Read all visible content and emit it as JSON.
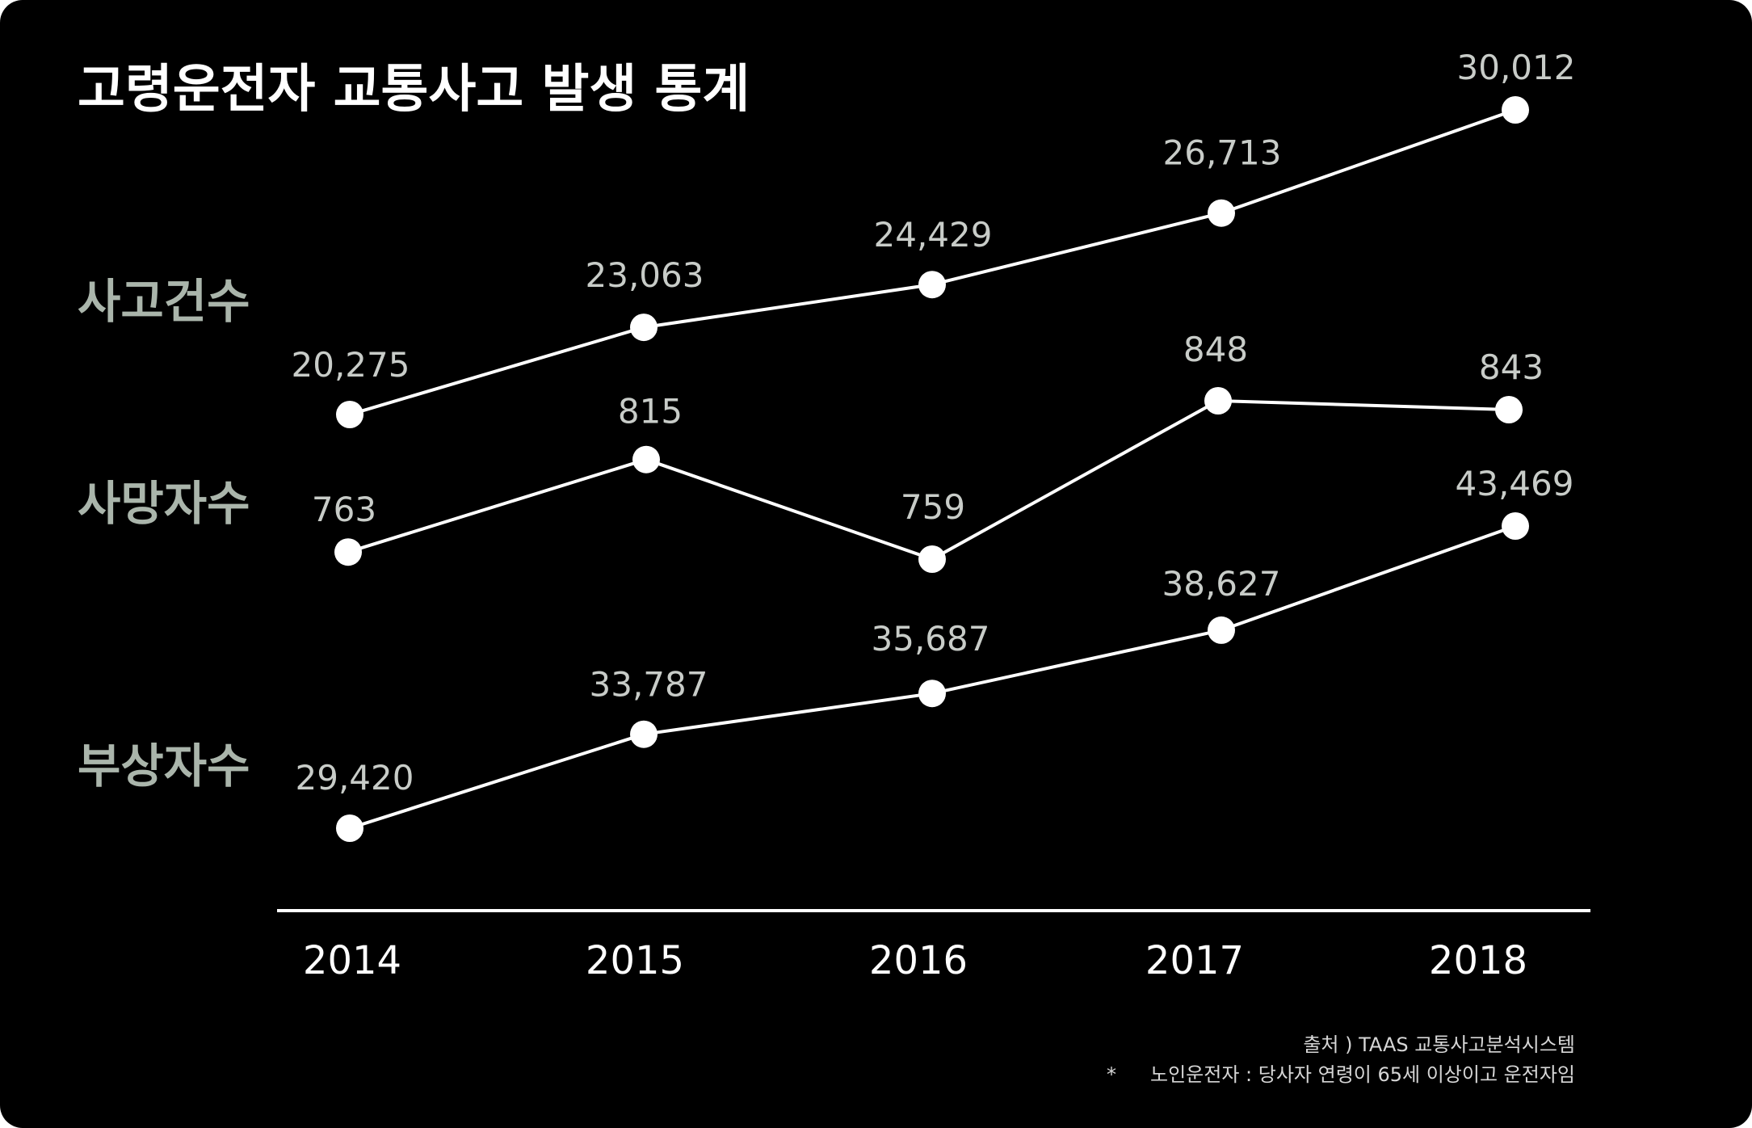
{
  "chart_data": {
    "type": "line",
    "title": "고령운전자 교통사고 발생 통계",
    "categories": [
      "2014",
      "2015",
      "2016",
      "2017",
      "2018"
    ],
    "series": [
      {
        "name": "사고건수",
        "values": [
          20275,
          23063,
          24429,
          26713,
          30012
        ],
        "labels": [
          "20,275",
          "23,063",
          "24,429",
          "26,713",
          "30,012"
        ]
      },
      {
        "name": "사망자수",
        "values": [
          763,
          815,
          759,
          848,
          843
        ],
        "labels": [
          "763",
          "815",
          "759",
          "848",
          "843"
        ]
      },
      {
        "name": "부상자수",
        "values": [
          29420,
          33787,
          35687,
          38627,
          43469
        ],
        "labels": [
          "29,420",
          "33,787",
          "35,687",
          "38,627",
          "43,469"
        ]
      }
    ],
    "grid": false,
    "legend": "left"
  },
  "notes": {
    "source": "출처 ) TAAS 교통사고분석시스템",
    "footnote_mark": "*",
    "footnote": "노인운전자 : 당사자 연령이 65세 이상이고 운전자임"
  },
  "colors": {
    "background": "#000000",
    "line": "#ffffff",
    "marker": "#ffffff",
    "series_label": "#aab5ab",
    "data_label": "#c8ccc8"
  }
}
